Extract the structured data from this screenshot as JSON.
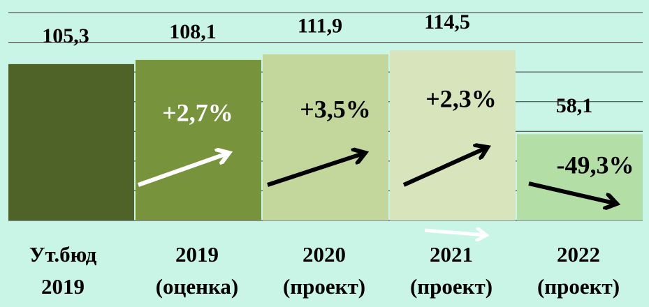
{
  "chart_data": {
    "type": "bar",
    "categories": [
      [
        "Ут.бюд",
        "2019"
      ],
      [
        "2019",
        "(оценка)"
      ],
      [
        "2020",
        "(проект)"
      ],
      [
        "2021",
        "(проект)"
      ],
      [
        "2022",
        "(проект)"
      ]
    ],
    "values": [
      105.3,
      108.1,
      111.9,
      114.5,
      58.1
    ],
    "value_labels": [
      "105,3",
      "108,1",
      "111,9",
      "114,5",
      "58,1"
    ],
    "colors": [
      "#4f6228",
      "#77933c",
      "#c3d69b",
      "#d7e4bc",
      "#b3dea6"
    ],
    "annotations": [
      {
        "text": "+2,7%",
        "color": "#ffffff"
      },
      {
        "text": "+3,5%",
        "color": "#000000"
      },
      {
        "text": "+2,3%",
        "color": "#000000"
      },
      {
        "text": "-49,3%",
        "color": "#000000"
      }
    ],
    "ylim": [
      0,
      140
    ],
    "yticks": [
      0,
      20,
      40,
      60,
      80,
      100,
      120,
      140
    ],
    "grid": true
  }
}
